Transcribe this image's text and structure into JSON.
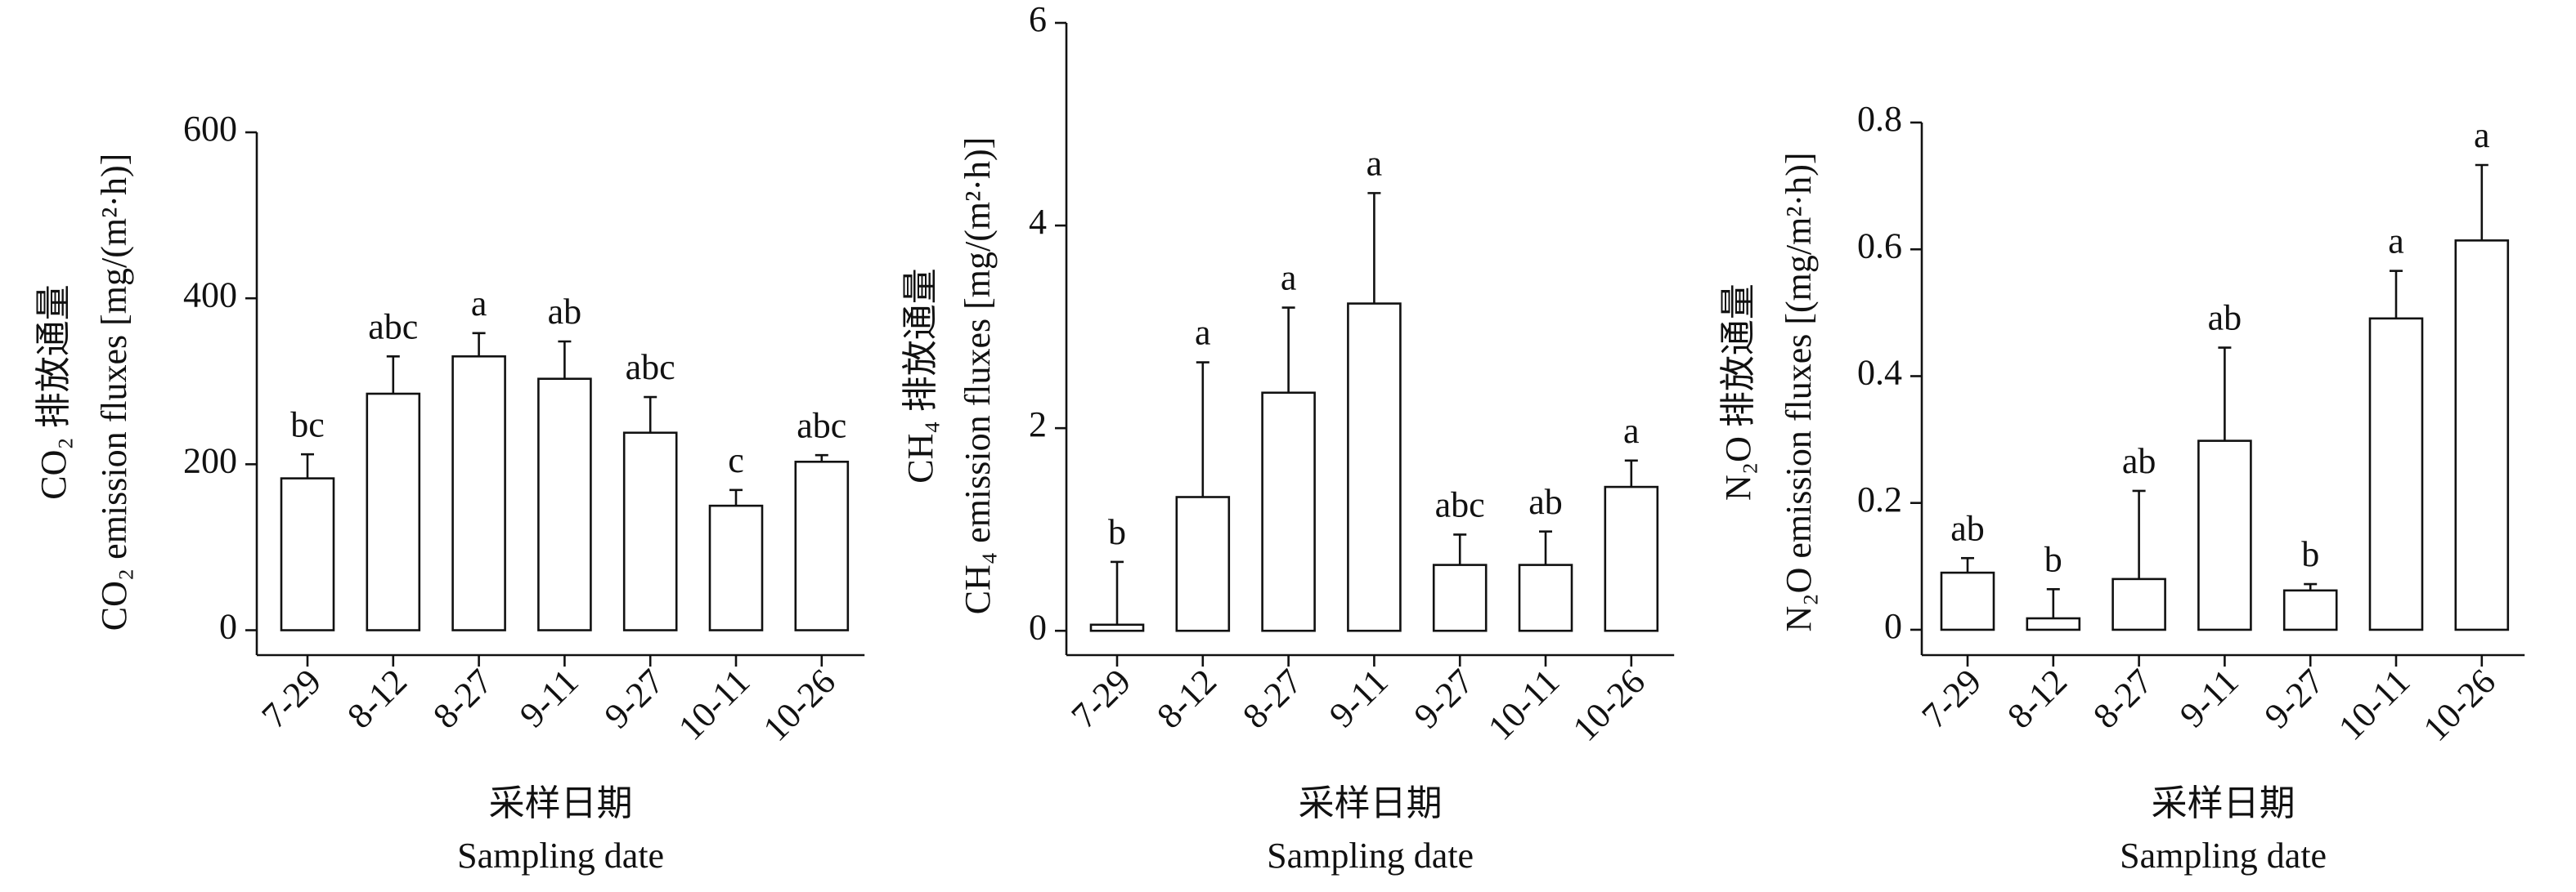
{
  "chart_data": [
    {
      "type": "bar",
      "ylabel_cn": "CO₂ 排放通量",
      "ylabel": "CO₂ emission fluxes [mg/(m²·h)]",
      "xlabel_cn": "采样日期",
      "xlabel": "Sampling date",
      "categories": [
        "7-29",
        "8-12",
        "8-27",
        "9-11",
        "9-27",
        "10-11",
        "10-26"
      ],
      "values": [
        183,
        285,
        330,
        303,
        238,
        150,
        203
      ],
      "errors": [
        29,
        45,
        28,
        45,
        43,
        19,
        8
      ],
      "letters": [
        "bc",
        "abc",
        "a",
        "ab",
        "abc",
        "c",
        "abc"
      ],
      "ylim": [
        -30,
        600
      ],
      "yticks": [
        0,
        200,
        400,
        600
      ],
      "color": "#ffffff"
    },
    {
      "type": "bar",
      "ylabel_cn": "CH₄ 排放通量",
      "ylabel": "CH₄ emission fluxes [mg/(m²·h)]",
      "xlabel_cn": "采样日期",
      "xlabel": "Sampling date",
      "categories": [
        "7-29",
        "8-12",
        "8-27",
        "9-11",
        "9-27",
        "10-11",
        "10-26"
      ],
      "values": [
        0.06,
        1.32,
        2.35,
        3.23,
        0.65,
        0.65,
        1.42
      ],
      "errors": [
        0.62,
        1.33,
        0.84,
        1.09,
        0.3,
        0.33,
        0.26
      ],
      "letters": [
        "b",
        "a",
        "a",
        "a",
        "abc",
        "ab",
        "a"
      ],
      "ylim": [
        -0.24,
        6
      ],
      "yticks": [
        0,
        2,
        4,
        6
      ],
      "color": "#ffffff"
    },
    {
      "type": "bar",
      "ylabel_cn": "N₂O 排放通量",
      "ylabel": "N₂O emission fluxes [(mg/m²·h)]",
      "xlabel_cn": "采样日期",
      "xlabel": "Sampling date",
      "categories": [
        "7-29",
        "8-12",
        "8-27",
        "9-11",
        "9-27",
        "10-11",
        "10-26"
      ],
      "values": [
        0.09,
        0.018,
        0.08,
        0.298,
        0.062,
        0.491,
        0.614
      ],
      "errors": [
        0.023,
        0.046,
        0.139,
        0.147,
        0.01,
        0.075,
        0.119
      ],
      "letters": [
        "ab",
        "b",
        "ab",
        "ab",
        "b",
        "a",
        "a"
      ],
      "ylim": [
        -0.04,
        0.8
      ],
      "yticks": [
        0,
        0.2,
        0.4,
        0.6,
        0.8
      ],
      "color": "#ffffff"
    }
  ]
}
